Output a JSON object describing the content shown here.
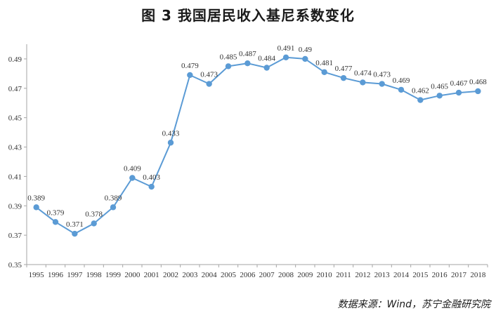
{
  "chart_data": {
    "type": "line",
    "title": "图 3    我国居民收入基尼系数变化",
    "categories": [
      "1995",
      "1996",
      "1997",
      "1998",
      "1999",
      "2000",
      "2001",
      "2002",
      "2003",
      "2004",
      "2005",
      "2006",
      "2007",
      "2008",
      "2009",
      "2010",
      "2011",
      "2012",
      "2013",
      "2014",
      "2015",
      "2016",
      "2017",
      "2018"
    ],
    "series": [
      {
        "values": [
          0.389,
          0.379,
          0.371,
          0.378,
          0.389,
          0.409,
          0.403,
          0.433,
          0.479,
          0.473,
          0.485,
          0.487,
          0.484,
          0.491,
          0.49,
          0.481,
          0.477,
          0.474,
          0.473,
          0.469,
          0.462,
          0.465,
          0.467,
          0.468
        ],
        "data_labels": [
          "0.389",
          "0.379",
          "0.371",
          "0.378",
          "0.389",
          "0.409",
          "0.403",
          "0.433",
          "0.479",
          "0.473",
          "0.485",
          "0.487",
          "0.484",
          "0.491",
          "0.49",
          "0.481",
          "0.477",
          "0.474",
          "0.473",
          "0.469",
          "0.462",
          "0.465",
          "0.467",
          "0.468"
        ],
        "color": "#5b9bd5"
      }
    ],
    "yticks": [
      "0.35",
      "0.37",
      "0.39",
      "0.41",
      "0.43",
      "0.45",
      "0.47",
      "0.49"
    ],
    "ylim": [
      0.35,
      0.5
    ],
    "grid": false,
    "source": "数据来源：Wind，苏宁金融研究院"
  }
}
